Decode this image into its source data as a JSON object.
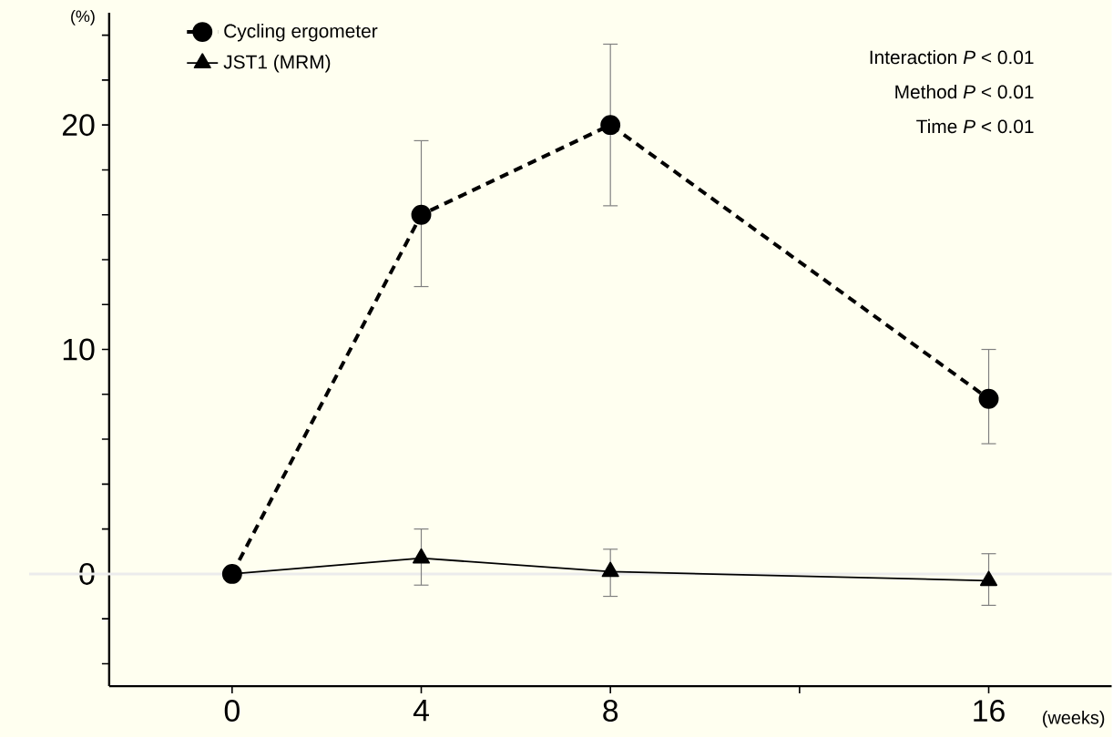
{
  "chart_data": {
    "type": "line",
    "xlabel": "(weeks)",
    "x": [
      0,
      4,
      8,
      16
    ],
    "series": [
      {
        "name": "Cycling ergometer",
        "color": "#000000",
        "marker": "circle",
        "line_style": "dashed",
        "values": [
          0,
          16.0,
          20.0,
          7.8
        ],
        "errors": [
          null,
          [
            12.8,
            19.3
          ],
          [
            16.4,
            23.6
          ],
          [
            5.8,
            10.0
          ]
        ]
      },
      {
        "name": "JST1 (MRM)",
        "color": "#000000",
        "marker": "triangle",
        "line_style": "solid",
        "values": [
          0,
          0.7,
          0.1,
          -0.3
        ],
        "errors": [
          null,
          [
            -0.5,
            2.0
          ],
          [
            -1.0,
            1.1
          ],
          [
            -1.4,
            0.9
          ]
        ]
      }
    ],
    "xlim": [
      -2.6,
      18.6
    ],
    "ylim": [
      -5,
      25
    ],
    "xticks": [
      0,
      4,
      8,
      {
        "value": 12,
        "label": null
      },
      16
    ],
    "yticks": [
      {
        "value": -4,
        "label": null
      },
      {
        "value": -2,
        "label": null
      },
      0,
      {
        "value": 2,
        "label": null
      },
      {
        "value": 4,
        "label": null
      },
      {
        "value": 6,
        "label": null
      },
      {
        "value": 8,
        "label": null
      },
      10,
      {
        "value": 12,
        "label": null
      },
      {
        "value": 14,
        "label": null
      },
      {
        "value": 16,
        "label": null
      },
      {
        "value": 18,
        "label": null
      },
      20,
      {
        "value": 22,
        "label": null
      },
      {
        "value": 24,
        "label": null
      }
    ],
    "ref_lines": [
      {
        "axis": "y",
        "value": 0,
        "color": "#ececec"
      }
    ],
    "legend": "top left",
    "grid": false,
    "annotations": [
      "(%)",
      "Interaction *P* < 0.01",
      "Method *P* < 0.01",
      "Time *P* < 0.01"
    ]
  }
}
